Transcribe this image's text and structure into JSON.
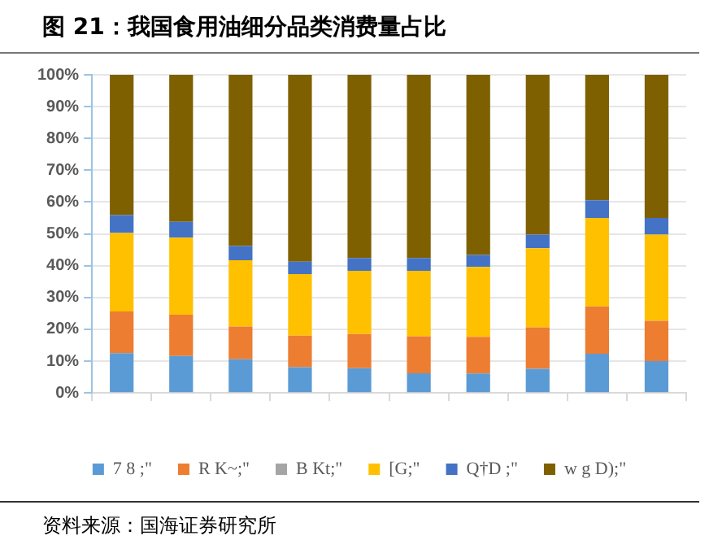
{
  "chart_data": {
    "type": "bar",
    "stacked": true,
    "title": "图 21：我国食用油细分品类消费量占比",
    "categories": [
      null,
      null,
      null,
      null,
      null,
      null,
      null,
      null,
      null,
      null
    ],
    "series": [
      {
        "name": "7 8 ;\"",
        "color": "#5b9bd5",
        "values": [
          12.5,
          11.6,
          10.6,
          8.1,
          7.8,
          6.2,
          6.1,
          7.6,
          12.3,
          10.0
        ]
      },
      {
        "name": "R K~;\"",
        "color": "#ed7d31",
        "values": [
          13.1,
          13.0,
          10.3,
          9.9,
          10.7,
          11.6,
          11.5,
          13.0,
          14.9,
          12.7
        ]
      },
      {
        "name": "B Kt;\"",
        "color": "#a5a5a5",
        "values": [
          0,
          0,
          0,
          0,
          0,
          0,
          0,
          0,
          0,
          0
        ]
      },
      {
        "name": "[G;\"",
        "color": "#ffc000",
        "values": [
          24.7,
          24.2,
          20.8,
          19.4,
          19.9,
          20.6,
          22.0,
          24.9,
          27.8,
          27.1
        ]
      },
      {
        "name": "Q†D ;\"",
        "color": "#4472c4",
        "values": [
          5.6,
          5.0,
          4.5,
          3.9,
          4.0,
          4.0,
          3.8,
          4.3,
          5.6,
          5.2
        ]
      },
      {
        "name": "w g D);\"",
        "color": "#7f6000",
        "values": [
          44.1,
          46.2,
          53.8,
          58.7,
          57.6,
          57.6,
          56.6,
          50.2,
          39.4,
          45.0
        ]
      }
    ],
    "ylim": [
      0,
      100
    ],
    "yticks": [
      {
        "value": 0,
        "label": "0%"
      },
      {
        "value": 10,
        "label": "10%"
      },
      {
        "value": 20,
        "label": "20%"
      },
      {
        "value": 30,
        "label": "30%"
      },
      {
        "value": 40,
        "label": "40%"
      },
      {
        "value": 50,
        "label": "50%"
      },
      {
        "value": 60,
        "label": "60%"
      },
      {
        "value": 70,
        "label": "70%"
      },
      {
        "value": 80,
        "label": "80%"
      },
      {
        "value": 90,
        "label": "90%"
      },
      {
        "value": 100,
        "label": "100%"
      }
    ],
    "grid": "y",
    "legend": "bottom",
    "annotations": [
      "资料来源：国海证券研究所"
    ]
  }
}
